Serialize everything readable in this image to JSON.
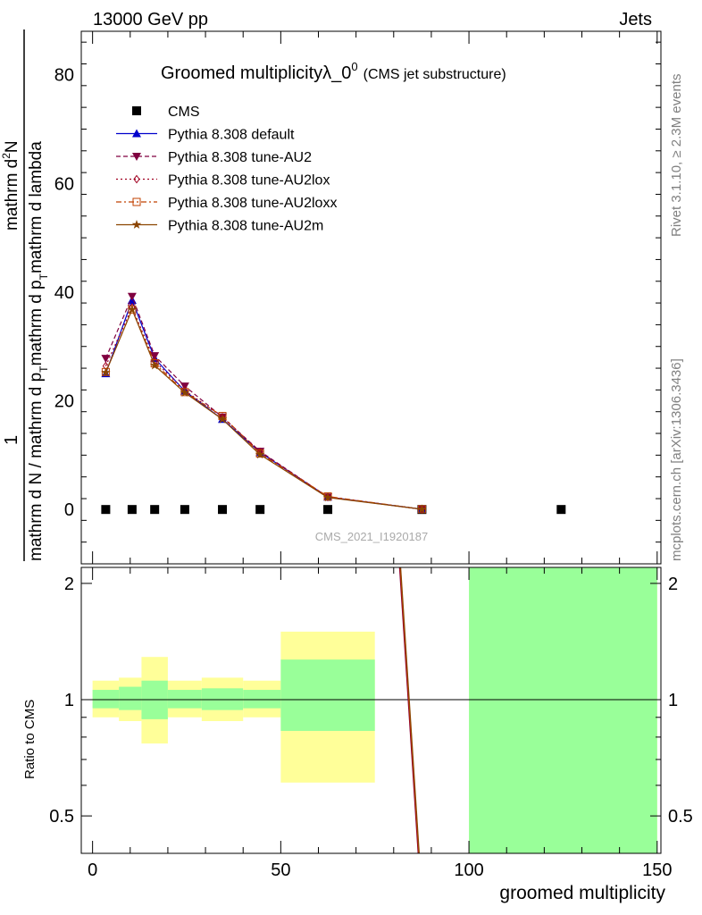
{
  "header": {
    "left": "13000 GeV pp",
    "right": "Jets"
  },
  "side_text": {
    "rivet": "Rivet 3.1.10, ≥ 2.3M events",
    "mcplots": "mcplots.cern.ch [arXiv:1306.3436]"
  },
  "colors": {
    "cms": "#000000",
    "default": "#0000cc",
    "au2": "#800040",
    "au2lox": "#a00020",
    "au2loxx": "#c04000",
    "au2m": "#8b4500",
    "band_inner": "#99ff99",
    "band_outer": "#ffff99"
  },
  "chart_data": [
    {
      "type": "line",
      "title": "Groomed multiplicityλ_0",
      "title_sup": "0",
      "subtitle": "(CMS jet substructure)",
      "watermark": "CMS_2021_I1920187",
      "ylabel_numerator": "1",
      "ylabel_denominator": "mathrm d N / mathrm d p",
      "ylabel_sub": "T",
      "ylabel_tail": "mathrm d p",
      "ylabel_sub2": "T",
      "ylabel_tail2": "mathrm d lambda",
      "ylabel_top": "mathrm d",
      "ylabel_top_sup": "2",
      "ylabel_top_tail": "N",
      "xlim": [
        -3,
        151
      ],
      "ylim": [
        -10,
        88
      ],
      "yticks": [
        0,
        20,
        40,
        60,
        80
      ],
      "legend_position": "top-left",
      "series": [
        {
          "name": "CMS",
          "key": "cms",
          "marker": "square",
          "x": [
            3.5,
            10.5,
            16.5,
            24.5,
            34.5,
            44.5,
            62.5,
            87.5,
            124.5
          ],
          "y": [
            0,
            0,
            0,
            0,
            0,
            0,
            0,
            0,
            0
          ]
        },
        {
          "name": "Pythia 8.308 default",
          "key": "default",
          "marker": "triangle-up",
          "dash": "",
          "x": [
            3.5,
            10.5,
            16.5,
            24.5,
            34.5,
            44.5,
            62.5,
            87.5
          ],
          "y": [
            25.0,
            38.5,
            27.8,
            21.8,
            16.6,
            10.5,
            2.3,
            0.05
          ]
        },
        {
          "name": "Pythia 8.308 tune-AU2",
          "key": "au2",
          "marker": "triangle-down",
          "dash": "5,3",
          "x": [
            3.5,
            10.5,
            16.5,
            24.5,
            34.5,
            44.5,
            62.5,
            87.5
          ],
          "y": [
            27.8,
            39.2,
            28.3,
            22.7,
            17.0,
            10.7,
            2.3,
            0.05
          ]
        },
        {
          "name": "Pythia 8.308 tune-AU2lox",
          "key": "au2lox",
          "marker": "diamond",
          "dash": "2,3",
          "x": [
            3.5,
            10.5,
            16.5,
            24.5,
            34.5,
            44.5,
            62.5,
            87.5
          ],
          "y": [
            26.4,
            37.2,
            27.3,
            21.9,
            17.0,
            10.6,
            2.3,
            0.05
          ]
        },
        {
          "name": "Pythia 8.308 tune-AU2loxx",
          "key": "au2loxx",
          "marker": "square-open",
          "dash": "6,3,2,3",
          "x": [
            3.5,
            10.5,
            16.5,
            24.5,
            34.5,
            44.5,
            62.5,
            87.5
          ],
          "y": [
            25.3,
            36.8,
            26.9,
            21.6,
            17.2,
            10.3,
            2.4,
            0.05
          ]
        },
        {
          "name": "Pythia 8.308 tune-AU2m",
          "key": "au2m",
          "marker": "star",
          "dash": "",
          "x": [
            3.5,
            10.5,
            16.5,
            24.5,
            34.5,
            44.5,
            62.5,
            87.5
          ],
          "y": [
            25.2,
            36.8,
            26.5,
            21.5,
            16.6,
            10.1,
            2.2,
            0.05
          ]
        }
      ]
    },
    {
      "type": "line",
      "ylabel": "Ratio to CMS",
      "xlabel": "groomed multiplicity",
      "xlim": [
        -3,
        151
      ],
      "ylim": [
        0.4,
        2.2
      ],
      "yscale": "log",
      "xticks": [
        0,
        50,
        100,
        150
      ],
      "yticks": [
        0.5,
        1,
        2
      ],
      "bands": [
        {
          "x0": 0,
          "x1": 7,
          "inner": [
            0.95,
            1.06
          ],
          "outer": [
            0.9,
            1.12
          ]
        },
        {
          "x0": 7,
          "x1": 13,
          "inner": [
            0.94,
            1.08
          ],
          "outer": [
            0.88,
            1.14
          ]
        },
        {
          "x0": 13,
          "x1": 20,
          "inner": [
            0.89,
            1.12
          ],
          "outer": [
            0.77,
            1.29
          ]
        },
        {
          "x0": 20,
          "x1": 29,
          "inner": [
            0.95,
            1.06
          ],
          "outer": [
            0.9,
            1.12
          ]
        },
        {
          "x0": 29,
          "x1": 40,
          "inner": [
            0.94,
            1.07
          ],
          "outer": [
            0.88,
            1.14
          ]
        },
        {
          "x0": 40,
          "x1": 50,
          "inner": [
            0.95,
            1.06
          ],
          "outer": [
            0.9,
            1.12
          ]
        },
        {
          "x0": 50,
          "x1": 75,
          "inner": [
            0.83,
            1.27
          ],
          "outer": [
            0.61,
            1.5
          ]
        },
        {
          "x0": 100,
          "x1": 150,
          "inner": [
            0.3,
            2.4
          ],
          "outer": [
            0.3,
            2.4
          ]
        }
      ],
      "ratio_line": {
        "x": [
          81.5,
          86.5
        ],
        "y": [
          2.25,
          0.4
        ]
      }
    }
  ]
}
